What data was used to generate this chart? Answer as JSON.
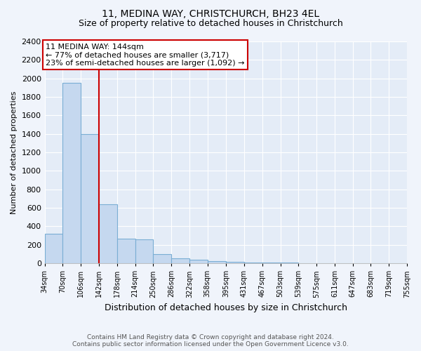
{
  "title": "11, MEDINA WAY, CHRISTCHURCH, BH23 4EL",
  "subtitle": "Size of property relative to detached houses in Christchurch",
  "xlabel": "Distribution of detached houses by size in Christchurch",
  "ylabel": "Number of detached properties",
  "bar_edges": [
    34,
    70,
    106,
    142,
    178,
    214,
    250,
    286,
    322,
    358,
    395,
    431,
    467,
    503,
    539,
    575,
    611,
    647,
    683,
    719,
    755
  ],
  "bar_heights": [
    320,
    1950,
    1400,
    640,
    270,
    260,
    100,
    55,
    40,
    25,
    20,
    12,
    8,
    5,
    3,
    2,
    1,
    1,
    1,
    1
  ],
  "bar_color": "#c5d8ef",
  "bar_edge_color": "#7aaed4",
  "vline_x": 142,
  "vline_color": "#cc0000",
  "annotation_title": "11 MEDINA WAY: 144sqm",
  "annotation_line1": "← 77% of detached houses are smaller (3,717)",
  "annotation_line2": "23% of semi-detached houses are larger (1,092) →",
  "annotation_box_color": "#cc0000",
  "ylim": [
    0,
    2400
  ],
  "yticks": [
    0,
    200,
    400,
    600,
    800,
    1000,
    1200,
    1400,
    1600,
    1800,
    2000,
    2200,
    2400
  ],
  "xtick_labels": [
    "34sqm",
    "70sqm",
    "106sqm",
    "142sqm",
    "178sqm",
    "214sqm",
    "250sqm",
    "286sqm",
    "322sqm",
    "358sqm",
    "395sqm",
    "431sqm",
    "467sqm",
    "503sqm",
    "539sqm",
    "575sqm",
    "611sqm",
    "647sqm",
    "683sqm",
    "719sqm",
    "755sqm"
  ],
  "footer_line1": "Contains HM Land Registry data © Crown copyright and database right 2024.",
  "footer_line2": "Contains public sector information licensed under the Open Government Licence v3.0.",
  "bg_color": "#f0f4fb",
  "plot_bg_color": "#e4ecf7",
  "title_fontsize": 10,
  "subtitle_fontsize": 9,
  "ylabel_fontsize": 8,
  "xlabel_fontsize": 9
}
